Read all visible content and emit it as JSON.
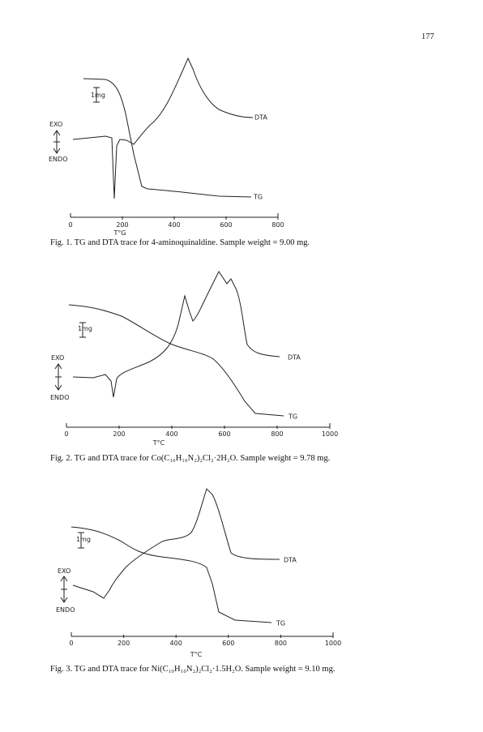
{
  "page_number": "177",
  "figures": [
    {
      "x_ticks": [
        "0",
        "200",
        "400",
        "600",
        "800"
      ],
      "x_label": "T°G",
      "dta_label": "DTA",
      "tg_label": "TG",
      "scale_label": "1mg",
      "exo_label": "EXO",
      "endo_label": "ENDO",
      "caption": "Fig. 1. TG and DTA trace for 4-aminoquinaldine. Sample weight = 9.00 mg."
    },
    {
      "x_ticks": [
        "0",
        "200",
        "400",
        "600",
        "800",
        "1000"
      ],
      "x_label": "T°C",
      "dta_label": "DTA",
      "tg_label": "TG",
      "scale_label": "1mg",
      "exo_label": "EXO",
      "endo_label": "ENDO",
      "caption": "Fig. 2. TG and DTA trace for Co(C₁₀H₁₀N₂)₂Cl₂·2H₂O. Sample weight = 9.78 mg."
    },
    {
      "x_ticks": [
        "0",
        "200",
        "400",
        "600",
        "800",
        "1000"
      ],
      "x_label": "T°C",
      "dta_label": "DTA",
      "tg_label": "TG",
      "scale_label": "1mg",
      "exo_label": "EXO",
      "endo_label": "ENDO",
      "caption": "Fig. 3. TG and DTA trace for Ni(C₁₀H₁₀N₂)₂Cl₂·1.5H₂O. Sample weight = 9.10 mg."
    }
  ]
}
